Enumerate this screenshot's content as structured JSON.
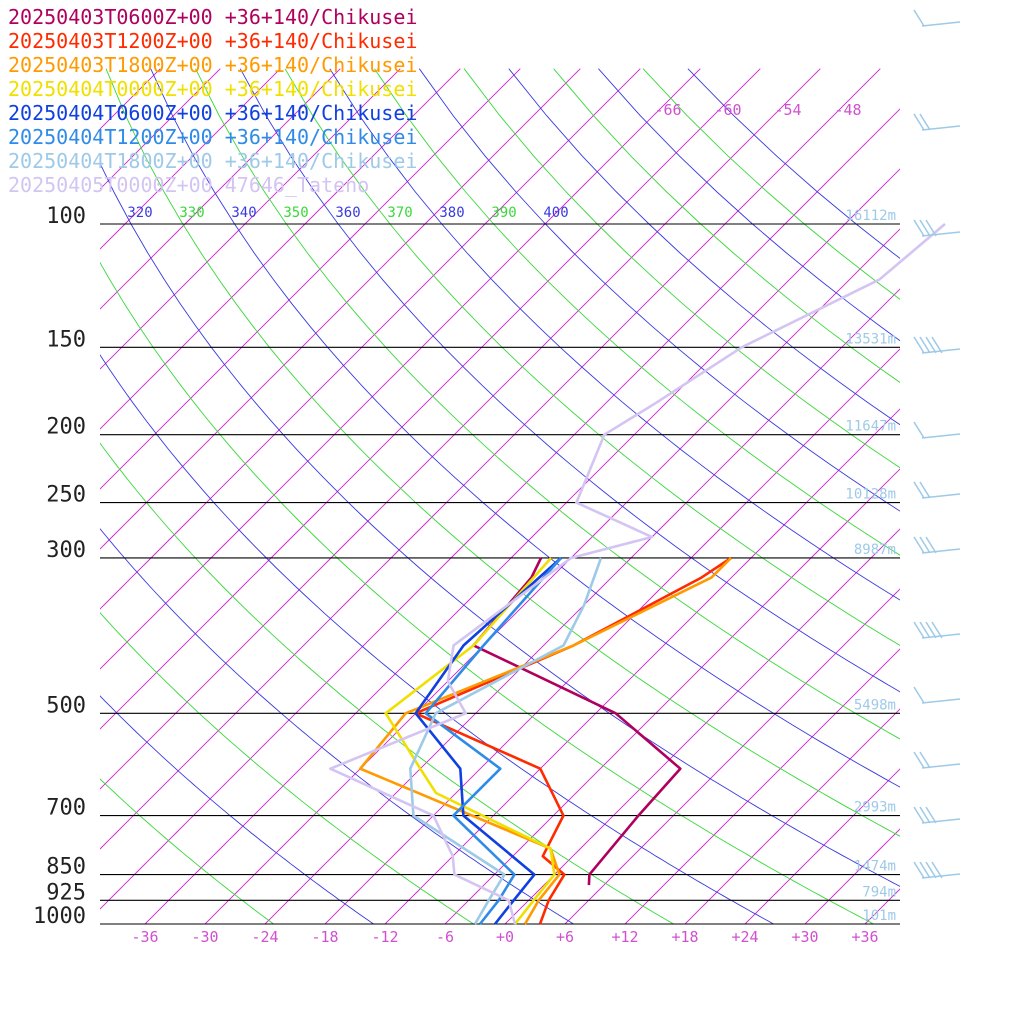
{
  "chart_data": {
    "type": "line",
    "title": "",
    "xlabel": "",
    "ylabel": "",
    "x_unit": "°C",
    "y_scale": "log-pressure",
    "xlim": [
      -40,
      40
    ],
    "ylim": [
      1000,
      100
    ],
    "pressure_levels": [
      {
        "label": "100",
        "p": 100
      },
      {
        "label": "150",
        "p": 150
      },
      {
        "label": "200",
        "p": 200
      },
      {
        "label": "250",
        "p": 250
      },
      {
        "label": "300",
        "p": 300
      },
      {
        "label": "500",
        "p": 500
      },
      {
        "label": "700",
        "p": 700
      },
      {
        "label": "850",
        "p": 850
      },
      {
        "label": "925",
        "p": 925
      },
      {
        "label": "1000",
        "p": 1000
      }
    ],
    "temperature_ticks": [
      {
        "label": "-36",
        "t": -36
      },
      {
        "label": "-30",
        "t": -30
      },
      {
        "label": "-24",
        "t": -24
      },
      {
        "label": "-18",
        "t": -18
      },
      {
        "label": "-12",
        "t": -12
      },
      {
        "label": "-6",
        "t": -6
      },
      {
        "label": "+0",
        "t": 0
      },
      {
        "label": "+6",
        "t": 6
      },
      {
        "label": "+12",
        "t": 12
      },
      {
        "label": "+18",
        "t": 18
      },
      {
        "label": "+24",
        "t": 24
      },
      {
        "label": "+30",
        "t": 30
      },
      {
        "label": "+36",
        "t": 36
      }
    ],
    "isotherm_top_labels": [
      "-66",
      "-60",
      "-54",
      "-48"
    ],
    "theta_labels": [
      {
        "label": "320",
        "color": "#3a3ae0"
      },
      {
        "label": "330",
        "color": "#39d839"
      },
      {
        "label": "340",
        "color": "#3a3ae0"
      },
      {
        "label": "350",
        "color": "#39d839"
      },
      {
        "label": "360",
        "color": "#3a3ae0"
      },
      {
        "label": "370",
        "color": "#39d839"
      },
      {
        "label": "380",
        "color": "#3a3ae0"
      },
      {
        "label": "390",
        "color": "#39d839"
      },
      {
        "label": "400",
        "color": "#3a3ae0"
      }
    ],
    "height_labels": [
      {
        "label": "16112m",
        "p": 100
      },
      {
        "label": "13531m",
        "p": 150
      },
      {
        "label": "11647m",
        "p": 200
      },
      {
        "label": "10128m",
        "p": 250
      },
      {
        "label": "8987m",
        "p": 300
      },
      {
        "label": "5498m",
        "p": 500
      },
      {
        "label": "2993m",
        "p": 700
      },
      {
        "label": "1474m",
        "p": 850
      },
      {
        "label": "794m",
        "p": 925
      },
      {
        "label": "101m",
        "p": 1000
      }
    ],
    "series": [
      {
        "name": "20250403T0600Z+00 +36+140/Chikusei",
        "color": "#b0005e",
        "points": [
          [
            880,
            4.5
          ],
          [
            850,
            3.5
          ],
          [
            700,
            2.5
          ],
          [
            600,
            2.0
          ],
          [
            500,
            -10
          ],
          [
            400,
            -31
          ],
          [
            320,
            -32
          ],
          [
            300,
            -33
          ]
        ]
      },
      {
        "name": "20250403T1200Z+00 +36+140/Chikusei",
        "color": "#ff2a00",
        "points": [
          [
            1000,
            3.5
          ],
          [
            925,
            2.0
          ],
          [
            850,
            1.0
          ],
          [
            800,
            -3
          ],
          [
            700,
            -5
          ],
          [
            600,
            -12
          ],
          [
            500,
            -30
          ],
          [
            400,
            -21
          ],
          [
            320,
            -15
          ],
          [
            300,
            -14
          ]
        ]
      },
      {
        "name": "20250403T1800Z+00 +36+140/Chikusei",
        "color": "#ff9a00",
        "points": [
          [
            1000,
            2.0
          ],
          [
            925,
            1.0
          ],
          [
            850,
            0.5
          ],
          [
            780,
            -3
          ],
          [
            600,
            -30
          ],
          [
            500,
            -31
          ],
          [
            400,
            -21
          ],
          [
            320,
            -14
          ],
          [
            300,
            -14
          ]
        ]
      },
      {
        "name": "20250404T0000Z+00 +36+140/Chikusei",
        "color": "#f0e000",
        "points": [
          [
            1000,
            1.0
          ],
          [
            925,
            0.5
          ],
          [
            850,
            0.0
          ],
          [
            780,
            -3
          ],
          [
            650,
            -20
          ],
          [
            600,
            -24
          ],
          [
            500,
            -33
          ],
          [
            400,
            -31
          ],
          [
            300,
            -32
          ]
        ]
      },
      {
        "name": "20250404T0600Z+00 +36+140/Chikusei",
        "color": "#1040e0",
        "points": [
          [
            1000,
            -1.0
          ],
          [
            925,
            -1.5
          ],
          [
            850,
            -2.0
          ],
          [
            700,
            -15
          ],
          [
            600,
            -20
          ],
          [
            500,
            -30
          ],
          [
            400,
            -32
          ],
          [
            300,
            -31
          ]
        ]
      },
      {
        "name": "20250404T1200Z+00 +36+140/Chikusei",
        "color": "#2e8be8",
        "points": [
          [
            1000,
            -2.5
          ],
          [
            925,
            -3.0
          ],
          [
            850,
            -4.0
          ],
          [
            700,
            -16
          ],
          [
            600,
            -16
          ],
          [
            500,
            -29
          ],
          [
            400,
            -30
          ],
          [
            300,
            -31
          ]
        ]
      },
      {
        "name": "20250404T1800Z+00 +36+140/Chikusei",
        "color": "#9ecae8",
        "points": [
          [
            1000,
            -3.0
          ],
          [
            925,
            -4.0
          ],
          [
            850,
            -5.0
          ],
          [
            700,
            -20
          ],
          [
            600,
            -25
          ],
          [
            500,
            -28
          ],
          [
            400,
            -22
          ],
          [
            350,
            -24
          ],
          [
            300,
            -27
          ]
        ]
      },
      {
        "name": "20250405T0000Z+00 47646_Tateno",
        "color": "#d4c4f2",
        "points": [
          [
            1000,
            1.0
          ],
          [
            925,
            -2.0
          ],
          [
            850,
            -10
          ],
          [
            800,
            -12
          ],
          [
            700,
            -18
          ],
          [
            600,
            -33
          ],
          [
            500,
            -25
          ],
          [
            450,
            -30
          ],
          [
            400,
            -33
          ],
          [
            300,
            -30
          ],
          [
            280,
            -24
          ],
          [
            250,
            -35
          ],
          [
            200,
            -39
          ],
          [
            180,
            -37
          ],
          [
            150,
            -34
          ],
          [
            120,
            -27
          ],
          [
            100,
            -26
          ]
        ]
      }
    ]
  }
}
